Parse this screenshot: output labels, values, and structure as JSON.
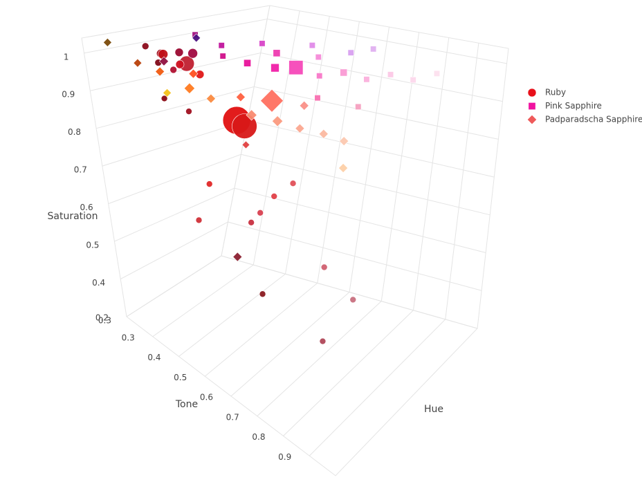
{
  "chart_data": {
    "type": "scatter3d",
    "xaxis_title": "Hue",
    "yaxis_title": "Tone",
    "zaxis_title": "Saturation",
    "xlim": [
      0,
      1
    ],
    "ylim": [
      0.2,
      1.0
    ],
    "zlim": [
      0.3,
      1.04
    ],
    "yticks": [
      0.2,
      0.3,
      0.4,
      0.5,
      0.6,
      0.7,
      0.8,
      0.9
    ],
    "zticks": [
      0.3,
      0.4,
      0.5,
      0.6,
      0.7,
      0.8,
      0.9,
      1
    ],
    "grid": true,
    "legend_position": "right",
    "series": [
      {
        "name": "Ruby",
        "marker": "circle",
        "color": "#e8101a",
        "x": [
          0.3,
          0.33,
          0.36,
          0.38,
          0.31,
          0.35,
          0.4,
          0.42,
          0.28,
          0.37,
          0.4,
          0.41,
          0.25,
          0.3,
          0.32,
          0.28,
          0.4,
          0.42,
          0.45,
          0.47,
          0.5,
          0.5,
          0.4,
          0.38
        ],
        "y": [
          0.22,
          0.25,
          0.24,
          0.28,
          0.3,
          0.32,
          0.27,
          0.3,
          0.27,
          0.35,
          0.45,
          0.47,
          0.3,
          0.35,
          0.4,
          0.38,
          0.5,
          0.52,
          0.55,
          0.6,
          0.7,
          0.8,
          0.75,
          0.55
        ],
        "z": [
          1.0,
          0.99,
          0.98,
          1.0,
          0.97,
          0.99,
          0.96,
          1.0,
          0.98,
          0.97,
          0.88,
          0.87,
          0.9,
          0.88,
          0.7,
          0.6,
          0.62,
          0.65,
          0.7,
          0.75,
          0.55,
          0.5,
          0.4,
          0.45
        ],
        "sizes": [
          10,
          12,
          14,
          12,
          10,
          22,
          12,
          14,
          10,
          12,
          40,
          36,
          9,
          9,
          9,
          9,
          9,
          9,
          9,
          9,
          9,
          9,
          9,
          9
        ],
        "colors": [
          "#8b0a1a",
          "#a01020",
          "#c01018",
          "#9a0830",
          "#b01030",
          "#c02030",
          "#d01020",
          "#a00a40",
          "#800818",
          "#e01818",
          "#e01010",
          "#d81818",
          "#8a0a14",
          "#a01020",
          "#e02828",
          "#d03038",
          "#c83040",
          "#d84050",
          "#e04048",
          "#e05058",
          "#d06070",
          "#c87080",
          "#b04858",
          "#8a1a20"
        ]
      },
      {
        "name": "Pink Sapphire",
        "marker": "square",
        "color": "#f012a0",
        "x": [
          0.5,
          0.55,
          0.58,
          0.62,
          0.65,
          0.68,
          0.7,
          0.72,
          0.75,
          0.78,
          0.8,
          0.83,
          0.85,
          0.88,
          0.9,
          0.92,
          0.6,
          0.95,
          0.52,
          0.66
        ],
        "y": [
          0.35,
          0.4,
          0.3,
          0.45,
          0.5,
          0.42,
          0.55,
          0.35,
          0.6,
          0.5,
          0.65,
          0.45,
          0.7,
          0.55,
          0.75,
          0.6,
          0.6,
          0.8,
          0.25,
          0.7
        ],
        "z": [
          1.0,
          0.99,
          1.0,
          0.98,
          0.99,
          1.0,
          0.97,
          1.0,
          0.98,
          0.99,
          0.96,
          1.0,
          0.97,
          0.99,
          0.95,
          1.0,
          0.95,
          0.96,
          1.02,
          0.94
        ],
        "sizes": [
          10,
          12,
          10,
          14,
          24,
          12,
          10,
          10,
          12,
          10,
          10,
          10,
          10,
          10,
          10,
          10,
          10,
          10,
          10,
          10
        ],
        "colors": [
          "#d0108a",
          "#e8129a",
          "#c0149c",
          "#f020a8",
          "#f548b8",
          "#ee3ab0",
          "#f878c8",
          "#d846c8",
          "#fa9ad4",
          "#f58ad8",
          "#fbb0dc",
          "#e08ae8",
          "#fcc8e6",
          "#d8a0f0",
          "#fdd8ec",
          "#e0b0f0",
          "#f870b0",
          "#fde0ee",
          "#a01080",
          "#f6a0c0"
        ]
      },
      {
        "name": "Padparadscha Sapphire",
        "marker": "diamond",
        "color": "#ef5a5a",
        "x": [
          0.1,
          0.15,
          0.18,
          0.2,
          0.22,
          0.25,
          0.28,
          0.3,
          0.33,
          0.36,
          0.4,
          0.42,
          0.45,
          0.48,
          0.38,
          0.52,
          0.46,
          0.3,
          0.44,
          0.26
        ],
        "y": [
          0.22,
          0.28,
          0.35,
          0.32,
          0.4,
          0.45,
          0.38,
          0.55,
          0.5,
          0.6,
          0.65,
          0.55,
          0.7,
          0.75,
          0.8,
          0.6,
          0.45,
          0.5,
          0.3,
          0.3
        ],
        "z": [
          1.03,
          1.0,
          0.95,
          0.99,
          0.98,
          0.97,
          1.0,
          0.96,
          0.98,
          0.95,
          0.94,
          0.97,
          0.93,
          0.92,
          0.9,
          0.95,
          0.8,
          0.55,
          1.04,
          1.0
        ],
        "sizes": [
          11,
          11,
          11,
          12,
          14,
          12,
          12,
          14,
          12,
          14,
          12,
          30,
          12,
          12,
          12,
          12,
          10,
          12,
          11,
          12
        ],
        "colors": [
          "#7a4a0a",
          "#b8400a",
          "#f6c21a",
          "#f05a10",
          "#ff7a20",
          "#fa8a40",
          "#ff5020",
          "#f98a70",
          "#ff6040",
          "#fb9a80",
          "#fba890",
          "#ff7060",
          "#fbb8a0",
          "#fcc8b0",
          "#fdd0a8",
          "#fa9088",
          "#e04040",
          "#8b2030",
          "#4a1080",
          "#901040"
        ]
      }
    ]
  }
}
